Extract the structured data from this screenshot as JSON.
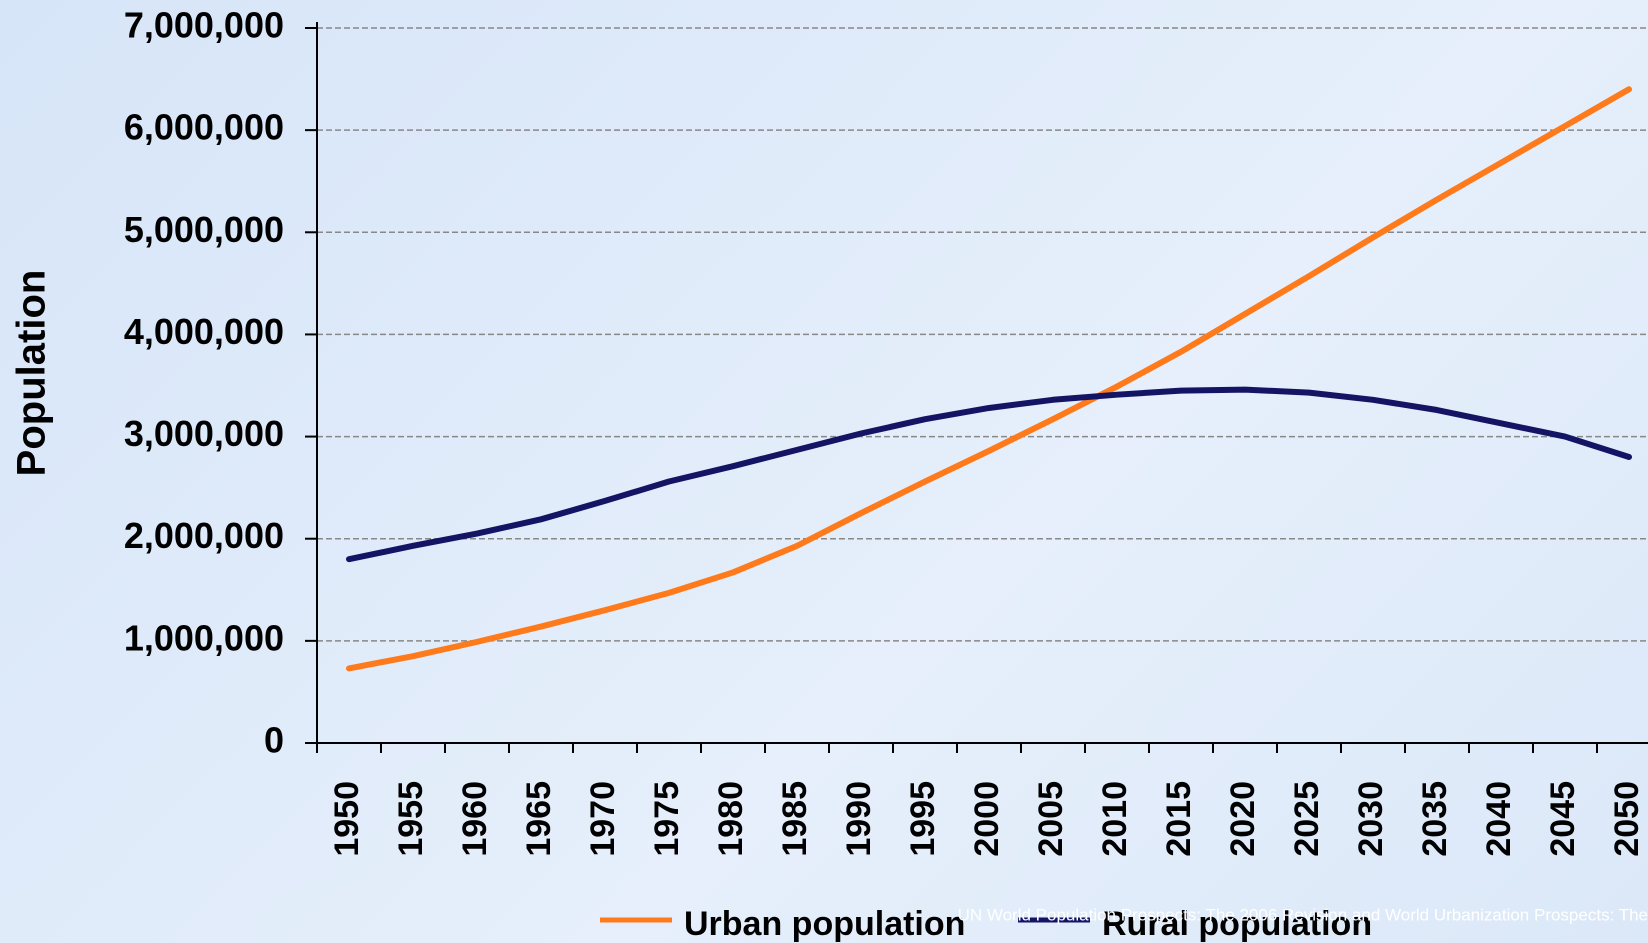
{
  "chart_data": {
    "type": "line",
    "y_label": "Population",
    "categories": [
      "1950",
      "1955",
      "1960",
      "1965",
      "1970",
      "1975",
      "1980",
      "1985",
      "1990",
      "1995",
      "2000",
      "2005",
      "2010",
      "2015",
      "2020",
      "2025",
      "2030",
      "2035",
      "2040",
      "2045",
      "2050"
    ],
    "series": [
      {
        "name": "Urban population",
        "color": "#ff7a1a",
        "values": [
          730000,
          850000,
          990000,
          1140000,
          1300000,
          1470000,
          1670000,
          1930000,
          2250000,
          2560000,
          2860000,
          3170000,
          3490000,
          3830000,
          4200000,
          4570000,
          4950000,
          5320000,
          5680000,
          6040000,
          6400000
        ]
      },
      {
        "name": "Rural population",
        "color": "#141464",
        "values": [
          1800000,
          1930000,
          2050000,
          2190000,
          2370000,
          2560000,
          2710000,
          2870000,
          3030000,
          3170000,
          3280000,
          3360000,
          3410000,
          3450000,
          3460000,
          3430000,
          3360000,
          3260000,
          3130000,
          3000000,
          2800000
        ]
      }
    ],
    "ylim": [
      0,
      7000000
    ],
    "yticks": [
      0,
      {
        "value": 1000000,
        "label": "1,000,000"
      },
      {
        "value": 2000000,
        "label": "2,000,000"
      },
      {
        "value": 3000000,
        "label": "3,000,000"
      },
      {
        "value": 4000000,
        "label": "4,000,000"
      },
      {
        "value": 5000000,
        "label": "5,000,000"
      },
      {
        "value": 6000000,
        "label": "6,000,000"
      },
      {
        "value": 7000000,
        "label": "7,000,000"
      }
    ],
    "grid": true,
    "legend": "bottom",
    "source": "UN World Population Prospects: The 2006 Revision and World Urbanization Prospects: The"
  }
}
